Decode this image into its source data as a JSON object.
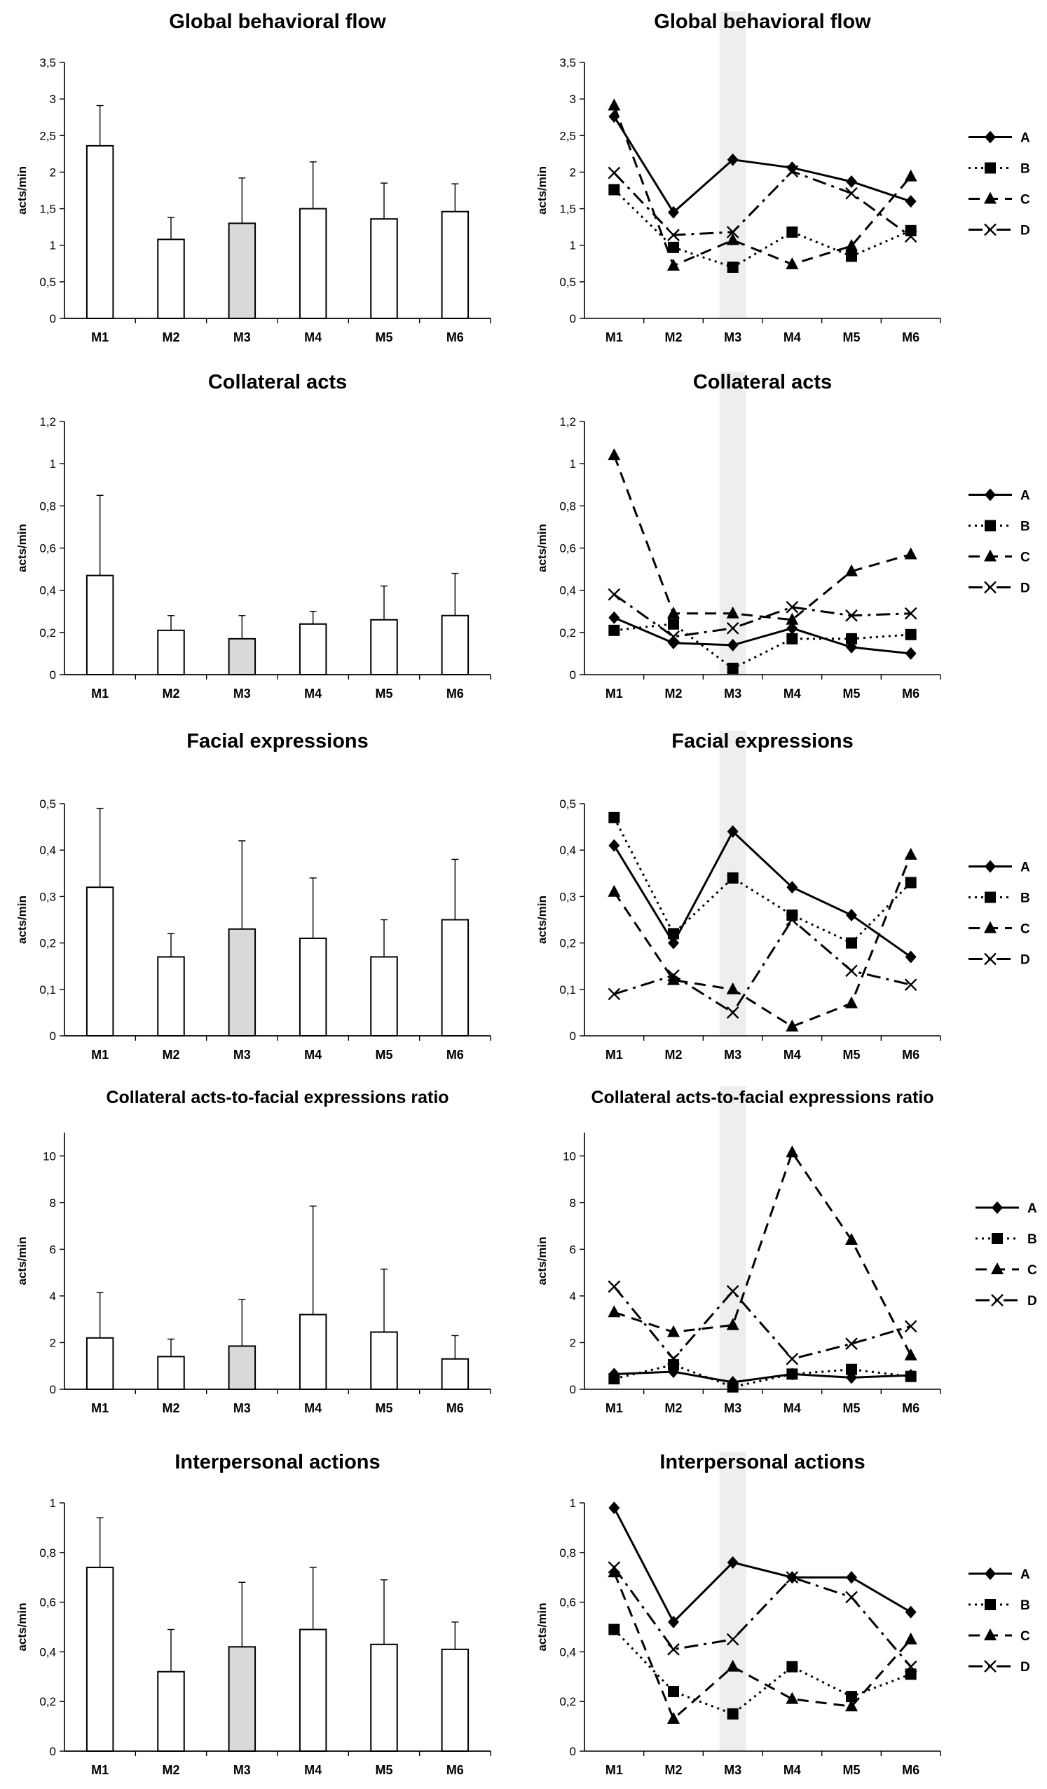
{
  "categories": [
    "M1",
    "M2",
    "M3",
    "M4",
    "M5",
    "M6"
  ],
  "highlight_category": "M3",
  "colors": {
    "bar": "#ffffff",
    "bar_highlight": "#d9d9d9",
    "stroke": "#000000",
    "highlight_band": "#eeeeee"
  },
  "chart_data": [
    {
      "type": "bar",
      "title": "Global behavioral flow",
      "ylabel": "acts/min",
      "ylim": [
        0,
        3.5
      ],
      "ytick_step": 0.5,
      "ytick_labels": [
        "0",
        "0,5",
        "1",
        "1,5",
        "2",
        "2,5",
        "3",
        "3,5"
      ],
      "categories": [
        "M1",
        "M2",
        "M3",
        "M4",
        "M5",
        "M6"
      ],
      "values": [
        2.36,
        1.08,
        1.3,
        1.5,
        1.36,
        1.46
      ],
      "errors": [
        0.55,
        0.3,
        0.62,
        0.64,
        0.49,
        0.38
      ]
    },
    {
      "type": "line",
      "title": "Global behavioral flow",
      "ylabel": "acts/min",
      "ylim": [
        0,
        3.5
      ],
      "ytick_step": 0.5,
      "ytick_labels": [
        "0",
        "0,5",
        "1",
        "1,5",
        "2",
        "2,5",
        "3",
        "3,5"
      ],
      "categories": [
        "M1",
        "M2",
        "M3",
        "M4",
        "M5",
        "M6"
      ],
      "series": [
        {
          "name": "A",
          "style": "solid",
          "marker": "diamond",
          "values": [
            2.76,
            1.45,
            2.17,
            2.06,
            1.87,
            1.6
          ]
        },
        {
          "name": "B",
          "style": "dotted",
          "marker": "square",
          "values": [
            1.76,
            0.97,
            0.7,
            1.18,
            0.85,
            1.2
          ]
        },
        {
          "name": "C",
          "style": "dashed",
          "marker": "triangle",
          "values": [
            2.91,
            0.72,
            1.07,
            0.74,
            0.99,
            1.94
          ]
        },
        {
          "name": "D",
          "style": "dashdot",
          "marker": "x",
          "values": [
            1.99,
            1.14,
            1.18,
            2.01,
            1.71,
            1.12
          ]
        }
      ]
    },
    {
      "type": "bar",
      "title": "Collateral acts",
      "ylabel": "acts/min",
      "ylim": [
        0,
        1.2
      ],
      "ytick_step": 0.2,
      "ytick_labels": [
        "0",
        "0,2",
        "0,4",
        "0,6",
        "0,8",
        "1",
        "1,2"
      ],
      "categories": [
        "M1",
        "M2",
        "M3",
        "M4",
        "M5",
        "M6"
      ],
      "values": [
        0.47,
        0.21,
        0.17,
        0.24,
        0.26,
        0.28
      ],
      "errors": [
        0.38,
        0.07,
        0.11,
        0.06,
        0.16,
        0.2
      ]
    },
    {
      "type": "line",
      "title": "Collateral acts",
      "ylabel": "acts/min",
      "ylim": [
        0,
        1.2
      ],
      "ytick_step": 0.2,
      "ytick_labels": [
        "0",
        "0,2",
        "0,4",
        "0,6",
        "0,8",
        "1",
        "1,2"
      ],
      "categories": [
        "M1",
        "M2",
        "M3",
        "M4",
        "M5",
        "M6"
      ],
      "series": [
        {
          "name": "A",
          "style": "solid",
          "marker": "diamond",
          "values": [
            0.27,
            0.15,
            0.14,
            0.22,
            0.13,
            0.1
          ]
        },
        {
          "name": "B",
          "style": "dotted",
          "marker": "square",
          "values": [
            0.21,
            0.24,
            0.03,
            0.17,
            0.17,
            0.19
          ]
        },
        {
          "name": "C",
          "style": "dashed",
          "marker": "triangle",
          "values": [
            1.04,
            0.29,
            0.29,
            0.26,
            0.49,
            0.57
          ]
        },
        {
          "name": "D",
          "style": "dashdot",
          "marker": "x",
          "values": [
            0.38,
            0.18,
            0.22,
            0.32,
            0.28,
            0.29
          ]
        }
      ]
    },
    {
      "type": "bar",
      "title": "Facial expressions",
      "ylabel": "acts/min",
      "ylim": [
        0,
        0.5
      ],
      "ytick_step": 0.1,
      "ytick_labels": [
        "0",
        "0,1",
        "0,2",
        "0,3",
        "0,4",
        "0,5"
      ],
      "categories": [
        "M1",
        "M2",
        "M3",
        "M4",
        "M5",
        "M6"
      ],
      "values": [
        0.32,
        0.17,
        0.23,
        0.21,
        0.17,
        0.25
      ],
      "errors": [
        0.17,
        0.05,
        0.19,
        0.13,
        0.08,
        0.13
      ]
    },
    {
      "type": "line",
      "title": "Facial expressions",
      "ylabel": "acts/min",
      "ylim": [
        0,
        0.5
      ],
      "ytick_step": 0.1,
      "ytick_labels": [
        "0",
        "0,1",
        "0,2",
        "0,3",
        "0,4",
        "0,5"
      ],
      "categories": [
        "M1",
        "M2",
        "M3",
        "M4",
        "M5",
        "M6"
      ],
      "series": [
        {
          "name": "A",
          "style": "solid",
          "marker": "diamond",
          "values": [
            0.41,
            0.2,
            0.44,
            0.32,
            0.26,
            0.17
          ]
        },
        {
          "name": "B",
          "style": "dotted",
          "marker": "square",
          "values": [
            0.47,
            0.22,
            0.34,
            0.26,
            0.2,
            0.33
          ]
        },
        {
          "name": "C",
          "style": "dashed",
          "marker": "triangle",
          "values": [
            0.31,
            0.12,
            0.1,
            0.02,
            0.07,
            0.39
          ]
        },
        {
          "name": "D",
          "style": "dashdot",
          "marker": "x",
          "values": [
            0.09,
            0.13,
            0.05,
            0.25,
            0.14,
            0.11
          ]
        }
      ]
    },
    {
      "type": "bar",
      "title": "Collateral acts-to-facial expressions ratio",
      "ylabel": "acts/min",
      "ylim": [
        0,
        11
      ],
      "ytick_step": 2,
      "ytick_labels": [
        "0",
        "2",
        "4",
        "6",
        "8",
        "10"
      ],
      "categories": [
        "M1",
        "M2",
        "M3",
        "M4",
        "M5",
        "M6"
      ],
      "values": [
        2.2,
        1.4,
        1.85,
        3.2,
        2.45,
        1.3
      ],
      "errors": [
        1.95,
        0.75,
        2.0,
        4.65,
        2.7,
        1.0
      ]
    },
    {
      "type": "line",
      "title": "Collateral acts-to-facial expressions ratio",
      "ylabel": "acts/min",
      "ylim": [
        0,
        11
      ],
      "ytick_step": 2,
      "ytick_labels": [
        "0",
        "2",
        "4",
        "6",
        "8",
        "10"
      ],
      "categories": [
        "M1",
        "M2",
        "M3",
        "M4",
        "M5",
        "M6"
      ],
      "series": [
        {
          "name": "A",
          "style": "solid",
          "marker": "diamond",
          "values": [
            0.65,
            0.75,
            0.3,
            0.65,
            0.5,
            0.6
          ]
        },
        {
          "name": "B",
          "style": "dotted",
          "marker": "square",
          "values": [
            0.45,
            1.05,
            0.1,
            0.65,
            0.85,
            0.55
          ]
        },
        {
          "name": "C",
          "style": "dashed",
          "marker": "triangle",
          "values": [
            3.3,
            2.45,
            2.75,
            10.15,
            6.4,
            1.45
          ]
        },
        {
          "name": "D",
          "style": "dashdot",
          "marker": "x",
          "values": [
            4.4,
            1.3,
            4.2,
            1.3,
            1.95,
            2.7
          ]
        }
      ]
    },
    {
      "type": "bar",
      "title": "Interpersonal actions",
      "ylabel": "acts/min",
      "ylim": [
        0,
        1
      ],
      "ytick_step": 0.2,
      "ytick_labels": [
        "0",
        "0,2",
        "0,4",
        "0,6",
        "0,8",
        "1"
      ],
      "categories": [
        "M1",
        "M2",
        "M3",
        "M4",
        "M5",
        "M6"
      ],
      "values": [
        0.74,
        0.32,
        0.42,
        0.49,
        0.43,
        0.41
      ],
      "errors": [
        0.2,
        0.17,
        0.26,
        0.25,
        0.26,
        0.11
      ]
    },
    {
      "type": "line",
      "title": "Interpersonal actions",
      "ylabel": "acts/min",
      "ylim": [
        0,
        1
      ],
      "ytick_step": 0.2,
      "ytick_labels": [
        "0",
        "0,2",
        "0,4",
        "0,6",
        "0,8",
        "1"
      ],
      "categories": [
        "M1",
        "M2",
        "M3",
        "M4",
        "M5",
        "M6"
      ],
      "series": [
        {
          "name": "A",
          "style": "solid",
          "marker": "diamond",
          "values": [
            0.98,
            0.52,
            0.76,
            0.7,
            0.7,
            0.56
          ]
        },
        {
          "name": "B",
          "style": "dotted",
          "marker": "square",
          "values": [
            0.49,
            0.24,
            0.15,
            0.34,
            0.22,
            0.31
          ]
        },
        {
          "name": "C",
          "style": "dashed",
          "marker": "triangle",
          "values": [
            0.72,
            0.13,
            0.34,
            0.21,
            0.18,
            0.45
          ]
        },
        {
          "name": "D",
          "style": "dashdot",
          "marker": "x",
          "values": [
            0.74,
            0.41,
            0.45,
            0.7,
            0.62,
            0.34
          ]
        }
      ]
    }
  ]
}
